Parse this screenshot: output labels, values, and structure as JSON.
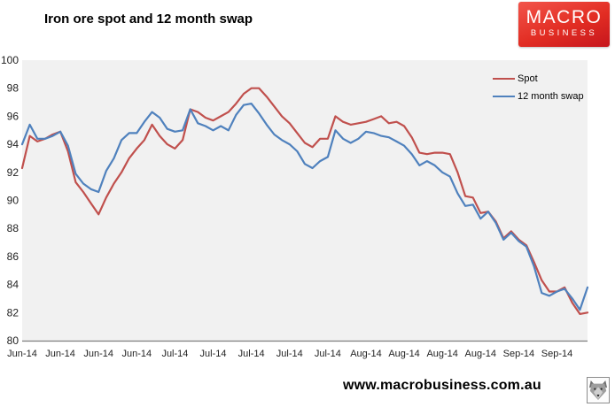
{
  "header": {
    "title": "Iron ore spot and 12 month swap"
  },
  "logo": {
    "line1": "MACRO",
    "line2": "BUSINESS",
    "bg_color": "#e22d23",
    "text_color": "#ffffff"
  },
  "footer": {
    "url": "www.macrobusiness.com.au",
    "wolf_icon": "wolf-logo"
  },
  "chart_data": {
    "type": "line",
    "title": "Iron ore spot and 12 month swap",
    "xlabel": "",
    "ylabel": "",
    "ylim": [
      80,
      100
    ],
    "y_ticks": [
      80,
      82,
      84,
      86,
      88,
      90,
      92,
      94,
      96,
      98,
      100
    ],
    "grid": false,
    "plot_bg": "#f1f1f1",
    "axis_line_color": "#7f7f7f",
    "tick_label_color": "#1f1f1f",
    "x_tick_labels": [
      "Jun-14",
      "Jun-14",
      "Jun-14",
      "Jun-14",
      "Jul-14",
      "Jul-14",
      "Jul-14",
      "Jul-14",
      "Jul-14",
      "Aug-14",
      "Aug-14",
      "Aug-14",
      "Aug-14",
      "Sep-14",
      "Sep-14"
    ],
    "points_per_x_label": 5,
    "n_points": 75,
    "legend": {
      "position": "top-right"
    },
    "series": [
      {
        "name": "Spot",
        "color": "#C0504D",
        "values": [
          92.3,
          94.6,
          94.2,
          94.4,
          94.7,
          94.9,
          93.5,
          91.3,
          90.6,
          89.8,
          89.0,
          90.2,
          91.2,
          92.0,
          93.0,
          93.7,
          94.3,
          95.4,
          94.6,
          94.0,
          93.7,
          94.3,
          96.5,
          96.3,
          95.9,
          95.7,
          96.0,
          96.3,
          96.9,
          97.6,
          98.0,
          98.0,
          97.4,
          96.7,
          96.0,
          95.5,
          94.8,
          94.1,
          93.8,
          94.4,
          94.4,
          96.0,
          95.6,
          95.4,
          95.5,
          95.6,
          95.8,
          96.0,
          95.5,
          95.6,
          95.3,
          94.5,
          93.4,
          93.3,
          93.4,
          93.4,
          93.3,
          92.0,
          90.3,
          90.2,
          89.1,
          89.2,
          88.5,
          87.3,
          87.8,
          87.2,
          86.8,
          85.6,
          84.3,
          83.5,
          83.5,
          83.8,
          82.7,
          81.9,
          82.0
        ]
      },
      {
        "name": "12 month swap",
        "color": "#4F81BD",
        "values": [
          94.0,
          95.4,
          94.4,
          94.4,
          94.6,
          94.9,
          93.9,
          91.9,
          91.2,
          90.8,
          90.6,
          92.1,
          93.0,
          94.3,
          94.8,
          94.8,
          95.6,
          96.3,
          95.9,
          95.1,
          94.9,
          95.0,
          96.5,
          95.5,
          95.3,
          95.0,
          95.3,
          95.0,
          96.1,
          96.8,
          96.9,
          96.2,
          95.4,
          94.7,
          94.3,
          94.0,
          93.5,
          92.6,
          92.3,
          92.8,
          93.1,
          95.0,
          94.4,
          94.1,
          94.4,
          94.9,
          94.8,
          94.6,
          94.5,
          94.2,
          93.9,
          93.3,
          92.5,
          92.8,
          92.5,
          92.0,
          91.7,
          90.5,
          89.6,
          89.7,
          88.7,
          89.2,
          88.4,
          87.2,
          87.7,
          87.1,
          86.7,
          85.3,
          83.4,
          83.2,
          83.5,
          83.7,
          83.0,
          82.2,
          83.8
        ]
      }
    ]
  }
}
